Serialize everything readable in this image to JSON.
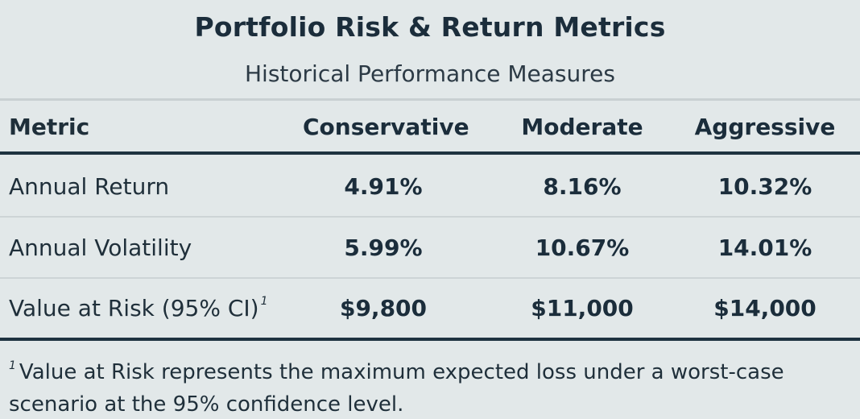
{
  "header": {
    "title": "Portfolio Risk & Return Metrics",
    "subtitle": "Historical Performance Measures"
  },
  "table": {
    "columns": [
      "Metric",
      "Conservative",
      "Moderate",
      "Aggressive"
    ],
    "rows": [
      {
        "metric": "Annual Return",
        "values": [
          "4.91%",
          "8.16%",
          "10.32%"
        ]
      },
      {
        "metric": "Annual Volatility",
        "values": [
          "5.99%",
          "10.67%",
          "14.01%"
        ]
      },
      {
        "metric": "Value at Risk (95% CI)",
        "footnote_mark": "1",
        "values": [
          "$9,800",
          "$11,000",
          "$14,000"
        ]
      }
    ]
  },
  "footnote": {
    "mark": "1",
    "text": "Value at Risk represents the maximum expected loss under a worst-case scenario at the 95% confidence level."
  },
  "colors": {
    "background": "#e2e8e9",
    "text": "#1b2d3b",
    "rule_dark": "#1e3340",
    "rule_light": "#c9d0d2"
  }
}
